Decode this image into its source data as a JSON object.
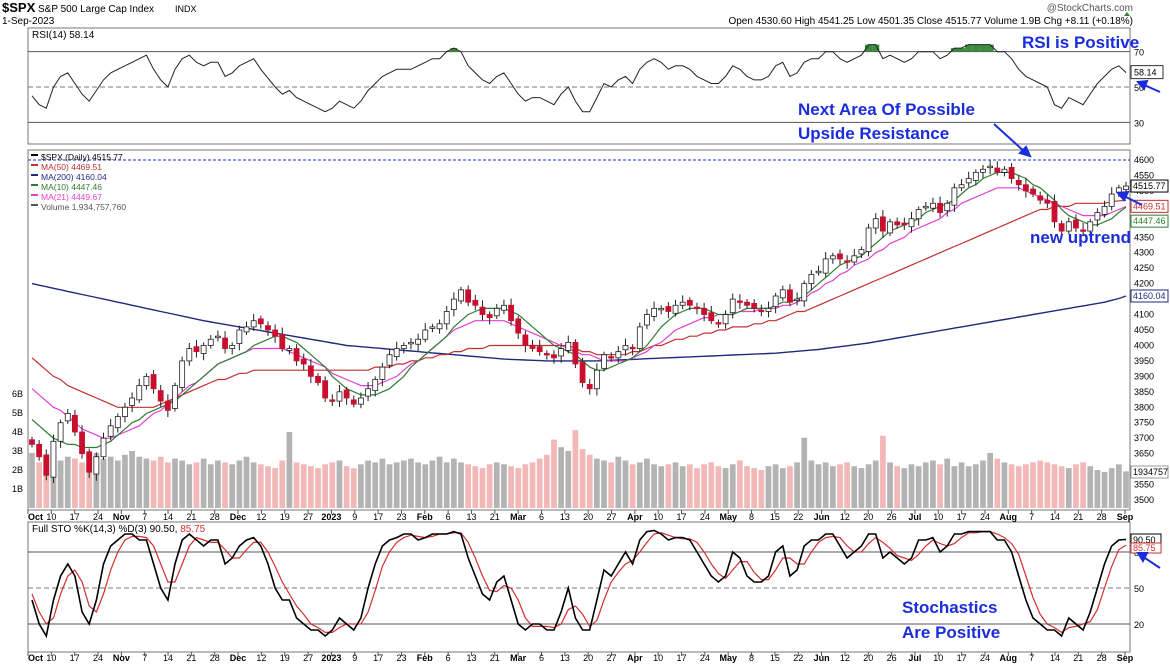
{
  "header": {
    "symbol": "$SPX",
    "name": "S&P 500 Large Cap Index",
    "exchange": "INDX",
    "date": "1-Sep-2023",
    "copyright": "@StockCharts.com",
    "ohlc_text": "Open 4530.60  High 4541.25  Low 4501.35  Close 4515.77  Volume 1.9B  Chg +8.11 (+0.18%)"
  },
  "colors": {
    "up": "#000000",
    "down": "#c8102e",
    "ma50": "#c0302f",
    "ma200": "#1d2b7a",
    "ma10": "#2e7d32",
    "ma21": "#e040d0",
    "annotation": "#1a2ddb",
    "vol_up": "#b3b3b3",
    "vol_down": "#f2b8b8",
    "sto_k": "#000000",
    "sto_d": "#d32f2f"
  },
  "rsi": {
    "label": "RSI(14) 58.14",
    "ticks": [
      "70",
      "50",
      "30"
    ],
    "current": "58.14",
    "annotation": "RSI is Positive"
  },
  "price": {
    "legend": [
      {
        "text": "$SPX (Daily) 4515.77",
        "color": "#000000"
      },
      {
        "text": "MA(50) 4469.51",
        "color": "#c0302f"
      },
      {
        "text": "MA(200) 4160.04",
        "color": "#1d2b7a"
      },
      {
        "text": "MA(10) 4447.46",
        "color": "#2e7d32"
      },
      {
        "text": "MA(21) 4449.67",
        "color": "#e040d0"
      },
      {
        "text": "Volume 1,934,757,760",
        "color": "#555555"
      }
    ],
    "ticks": [
      "4600",
      "4550",
      "4500",
      "4450",
      "4400",
      "4350",
      "4300",
      "4250",
      "4200",
      "4150",
      "4100",
      "4050",
      "4000",
      "3950",
      "3900",
      "3850",
      "3800",
      "3750",
      "3700",
      "3650",
      "3600",
      "3550",
      "3500"
    ],
    "vol_ticks": [
      "6B",
      "5B",
      "4B",
      "3B",
      "2B",
      "1B"
    ],
    "right_labels": [
      "4515.77",
      "4469.51",
      "4447.46",
      "4160.04",
      "1934757"
    ],
    "annotations": {
      "resistance_line1": "Next Area Of Possible",
      "resistance_line2": "Upside Resistance",
      "uptrend": "new uptrend"
    }
  },
  "sto": {
    "label": "Full STO %K(14,3) %D(3) 90.50, 85.75",
    "label_prefix": "Full STO %K(14,3) %D(3) 90.50,",
    "label_suffix": "85.75",
    "ticks": [
      "80",
      "50",
      "20"
    ],
    "right_labels": [
      "90.50",
      "85.75"
    ],
    "annotation_line1": "Stochastics",
    "annotation_line2": "Are Positive"
  },
  "x_axis": {
    "labels": [
      "Oct",
      "10",
      "17",
      "24",
      "Nov",
      "7",
      "14",
      "21",
      "28",
      "Dec",
      "12",
      "19",
      "27",
      "2023",
      "9",
      "17",
      "23",
      "Feb",
      "6",
      "13",
      "21",
      "Mar",
      "6",
      "13",
      "20",
      "27",
      "Apr",
      "10",
      "17",
      "24",
      "May",
      "8",
      "15",
      "22",
      "Jun",
      "12",
      "20",
      "26",
      "Jul",
      "10",
      "17",
      "24",
      "Aug",
      "7",
      "14",
      "21",
      "28",
      "Sep"
    ],
    "bold": [
      "Oct",
      "Nov",
      "Dec",
      "2023",
      "Feb",
      "Mar",
      "Apr",
      "May",
      "Jun",
      "Jul",
      "Aug",
      "Sep"
    ]
  },
  "chart_data": {
    "type": "candlestick",
    "title": "$SPX S&P 500 Large Cap Index INDX",
    "date": "1-Sep-2023",
    "ylim": [
      3480,
      4620
    ],
    "close": [
      3680,
      3640,
      3580,
      3690,
      3750,
      3780,
      3720,
      3650,
      3590,
      3640,
      3700,
      3740,
      3770,
      3800,
      3830,
      3870,
      3900,
      3860,
      3820,
      3790,
      3870,
      3950,
      3990,
      3980,
      4000,
      4020,
      4030,
      3990,
      4000,
      4050,
      4060,
      4080,
      4070,
      4050,
      4030,
      3990,
      3990,
      3950,
      3940,
      3900,
      3880,
      3830,
      3820,
      3850,
      3830,
      3810,
      3830,
      3860,
      3890,
      3930,
      3970,
      3990,
      4000,
      4010,
      4020,
      4050,
      4060,
      4070,
      4110,
      4150,
      4180,
      4140,
      4130,
      4100,
      4090,
      4120,
      4130,
      4080,
      4040,
      4000,
      3990,
      3980,
      3970,
      3960,
      3990,
      4010,
      3940,
      3880,
      3860,
      3920,
      3970,
      3960,
      3980,
      4000,
      3990,
      4060,
      4100,
      4120,
      4120,
      4110,
      4130,
      4140,
      4130,
      4120,
      4100,
      4080,
      4070,
      4100,
      4150,
      4140,
      4130,
      4120,
      4110,
      4120,
      4160,
      4180,
      4140,
      4150,
      4200,
      4230,
      4240,
      4280,
      4290,
      4280,
      4270,
      4290,
      4310,
      4380,
      4410,
      4370,
      4400,
      4390,
      4390,
      4410,
      4440,
      4450,
      4460,
      4430,
      4460,
      4510,
      4520,
      4540,
      4560,
      4570,
      4580,
      4560,
      4570,
      4540,
      4520,
      4500,
      4490,
      4470,
      4460,
      4400,
      4370,
      4400,
      4380,
      4370,
      4400,
      4430,
      4450,
      4490,
      4510,
      4515.77
    ],
    "ma10": [
      3760,
      3740,
      3720,
      3700,
      3690,
      3680,
      3680,
      3670,
      3670,
      3670,
      3680,
      3690,
      3710,
      3730,
      3750,
      3760,
      3780,
      3790,
      3800,
      3810,
      3820,
      3840,
      3860,
      3880,
      3900,
      3920,
      3940,
      3950,
      3960,
      3970,
      3980,
      4000,
      4010,
      4020,
      4030,
      4030,
      4020,
      4010,
      3990,
      3970,
      3950,
      3930,
      3900,
      3880,
      3860,
      3850,
      3840,
      3840,
      3840,
      3850,
      3860,
      3880,
      3900,
      3930,
      3950,
      3970,
      3990,
      4010,
      4030,
      4060,
      4080,
      4100,
      4110,
      4120,
      4120,
      4120,
      4120,
      4110,
      4100,
      4080,
      4060,
      4040,
      4020,
      4000,
      3990,
      3980,
      3970,
      3950,
      3930,
      3920,
      3920,
      3930,
      3940,
      3950,
      3960,
      3980,
      4000,
      4030,
      4060,
      4080,
      4100,
      4110,
      4120,
      4120,
      4120,
      4110,
      4100,
      4100,
      4100,
      4110,
      4120,
      4120,
      4120,
      4120,
      4130,
      4140,
      4140,
      4150,
      4160,
      4180,
      4200,
      4220,
      4240,
      4260,
      4270,
      4280,
      4290,
      4310,
      4330,
      4350,
      4370,
      4380,
      4390,
      4400,
      4410,
      4430,
      4440,
      4450,
      4460,
      4470,
      4490,
      4510,
      4520,
      4540,
      4550,
      4560,
      4560,
      4560,
      4550,
      4540,
      4520,
      4510,
      4490,
      4470,
      4440,
      4420,
      4410,
      4400,
      4390,
      4390,
      4400,
      4410,
      4430,
      4447.46
    ],
    "ma21": [
      3860,
      3840,
      3820,
      3800,
      3790,
      3770,
      3750,
      3730,
      3720,
      3710,
      3700,
      3700,
      3710,
      3720,
      3730,
      3740,
      3760,
      3780,
      3790,
      3810,
      3830,
      3850,
      3870,
      3880,
      3900,
      3920,
      3940,
      3950,
      3960,
      3970,
      3980,
      3990,
      3990,
      3990,
      3990,
      3990,
      3980,
      3970,
      3960,
      3950,
      3940,
      3930,
      3910,
      3900,
      3890,
      3880,
      3870,
      3870,
      3870,
      3880,
      3890,
      3900,
      3920,
      3940,
      3950,
      3970,
      3990,
      4010,
      4030,
      4050,
      4060,
      4070,
      4080,
      4080,
      4080,
      4080,
      4080,
      4070,
      4060,
      4050,
      4040,
      4030,
      4020,
      4010,
      4000,
      3990,
      3980,
      3970,
      3970,
      3960,
      3950,
      3950,
      3950,
      3950,
      3960,
      3970,
      3980,
      4000,
      4010,
      4030,
      4050,
      4060,
      4070,
      4080,
      4090,
      4090,
      4100,
      4100,
      4100,
      4110,
      4110,
      4110,
      4120,
      4120,
      4120,
      4130,
      4130,
      4140,
      4150,
      4170,
      4180,
      4200,
      4210,
      4230,
      4240,
      4260,
      4270,
      4280,
      4300,
      4310,
      4330,
      4340,
      4350,
      4370,
      4380,
      4390,
      4400,
      4410,
      4430,
      4440,
      4460,
      4470,
      4480,
      4490,
      4500,
      4510,
      4510,
      4510,
      4510,
      4500,
      4490,
      4480,
      4470,
      4460,
      4450,
      4440,
      4430,
      4420,
      4420,
      4420,
      4420,
      4430,
      4440,
      4449.67
    ],
    "ma50": [
      3960,
      3940,
      3920,
      3900,
      3890,
      3870,
      3860,
      3850,
      3840,
      3830,
      3820,
      3810,
      3800,
      3800,
      3800,
      3800,
      3800,
      3800,
      3810,
      3820,
      3830,
      3840,
      3850,
      3860,
      3870,
      3880,
      3890,
      3890,
      3900,
      3910,
      3910,
      3920,
      3920,
      3920,
      3920,
      3920,
      3920,
      3920,
      3920,
      3920,
      3920,
      3920,
      3920,
      3920,
      3920,
      3920,
      3920,
      3920,
      3930,
      3930,
      3930,
      3940,
      3940,
      3950,
      3950,
      3960,
      3960,
      3970,
      3970,
      3980,
      3980,
      3990,
      3990,
      3990,
      4000,
      4000,
      4000,
      4000,
      4000,
      4000,
      4000,
      4000,
      4000,
      4000,
      4000,
      4000,
      3990,
      3980,
      3980,
      3970,
      3970,
      3970,
      3970,
      3970,
      3980,
      3980,
      3990,
      4000,
      4000,
      4010,
      4020,
      4020,
      4030,
      4030,
      4040,
      4040,
      4050,
      4050,
      4060,
      4060,
      4060,
      4070,
      4070,
      4080,
      4080,
      4090,
      4100,
      4110,
      4110,
      4120,
      4130,
      4140,
      4150,
      4160,
      4170,
      4180,
      4190,
      4200,
      4210,
      4220,
      4230,
      4240,
      4250,
      4260,
      4270,
      4280,
      4290,
      4300,
      4310,
      4320,
      4330,
      4340,
      4350,
      4360,
      4370,
      4380,
      4390,
      4400,
      4410,
      4420,
      4430,
      4440,
      4440,
      4450,
      4450,
      4450,
      4460,
      4460,
      4460,
      4460,
      4460,
      4465,
      4468,
      4469.51
    ],
    "ma200": [
      4200,
      4195,
      4190,
      4185,
      4180,
      4175,
      4170,
      4165,
      4160,
      4155,
      4150,
      4145,
      4140,
      4135,
      4130,
      4125,
      4120,
      4115,
      4110,
      4105,
      4100,
      4095,
      4090,
      4085,
      4080,
      4076,
      4072,
      4068,
      4064,
      4060,
      4056,
      4052,
      4048,
      4044,
      4040,
      4036,
      4032,
      4028,
      4024,
      4020,
      4016,
      4012,
      4008,
      4004,
      4000,
      3998,
      3996,
      3994,
      3992,
      3990,
      3988,
      3986,
      3984,
      3982,
      3980,
      3978,
      3976,
      3974,
      3972,
      3970,
      3968,
      3966,
      3964,
      3962,
      3960,
      3958,
      3956,
      3955,
      3954,
      3953,
      3952,
      3951,
      3950,
      3950,
      3950,
      3950,
      3950,
      3950,
      3950,
      3950,
      3951,
      3952,
      3953,
      3954,
      3955,
      3956,
      3957,
      3958,
      3959,
      3960,
      3961,
      3962,
      3963,
      3964,
      3965,
      3966,
      3967,
      3968,
      3969,
      3970,
      3971,
      3972,
      3973,
      3974,
      3975,
      3977,
      3979,
      3981,
      3983,
      3985,
      3987,
      3990,
      3993,
      3996,
      3999,
      4002,
      4005,
      4008,
      4012,
      4016,
      4020,
      4024,
      4028,
      4032,
      4036,
      4040,
      4044,
      4048,
      4052,
      4056,
      4060,
      4064,
      4068,
      4072,
      4076,
      4080,
      4084,
      4088,
      4092,
      4096,
      4100,
      4104,
      4108,
      4112,
      4116,
      4120,
      4124,
      4128,
      4132,
      4136,
      4140,
      4146,
      4152,
      4160.04
    ],
    "volume_billions": [
      2.9,
      2.4,
      2.6,
      2.8,
      2.5,
      2.7,
      2.6,
      2.4,
      2.8,
      2.9,
      2.6,
      2.7,
      2.5,
      2.8,
      3.0,
      2.7,
      2.6,
      2.5,
      2.7,
      2.4,
      2.6,
      2.5,
      2.3,
      2.4,
      2.6,
      2.3,
      2.5,
      2.4,
      2.3,
      2.5,
      2.7,
      2.4,
      2.3,
      2.2,
      2.1,
      2.5,
      4.0,
      2.4,
      2.3,
      2.2,
      2.1,
      2.3,
      2.4,
      2.5,
      2.2,
      2.1,
      2.3,
      2.5,
      2.4,
      2.6,
      2.3,
      2.4,
      2.5,
      2.6,
      2.4,
      2.3,
      2.5,
      2.7,
      2.4,
      2.6,
      2.4,
      2.3,
      2.2,
      2.1,
      2.3,
      2.4,
      2.3,
      2.2,
      2.1,
      2.3,
      2.4,
      2.6,
      2.8,
      3.6,
      3.2,
      3.0,
      4.1,
      3.1,
      2.8,
      2.6,
      2.5,
      2.4,
      2.7,
      2.5,
      2.3,
      2.4,
      2.6,
      2.3,
      2.2,
      2.3,
      2.4,
      2.2,
      2.3,
      2.1,
      2.3,
      2.4,
      2.2,
      2.1,
      2.3,
      2.5,
      2.2,
      2.1,
      2.0,
      2.2,
      2.3,
      2.1,
      2.2,
      2.4,
      3.7,
      2.5,
      2.3,
      2.4,
      2.2,
      2.3,
      2.4,
      2.2,
      2.1,
      2.3,
      2.5,
      3.8,
      2.4,
      2.2,
      2.1,
      2.3,
      2.2,
      2.4,
      2.5,
      2.3,
      2.6,
      2.2,
      2.4,
      2.2,
      2.3,
      2.5,
      2.9,
      2.6,
      2.4,
      2.3,
      2.2,
      2.3,
      2.4,
      2.5,
      2.4,
      2.3,
      2.2,
      2.1,
      2.3,
      2.4,
      2.2,
      2.0,
      1.9,
      2.1,
      2.3,
      1.93
    ],
    "rsi": [
      45,
      40,
      38,
      50,
      56,
      58,
      52,
      46,
      42,
      48,
      54,
      58,
      60,
      62,
      64,
      66,
      68,
      60,
      54,
      50,
      60,
      66,
      68,
      64,
      62,
      64,
      64,
      56,
      58,
      62,
      64,
      66,
      60,
      55,
      50,
      46,
      48,
      44,
      42,
      40,
      38,
      36,
      38,
      42,
      40,
      38,
      42,
      48,
      52,
      56,
      58,
      60,
      60,
      60,
      62,
      64,
      66,
      66,
      70,
      72,
      70,
      62,
      58,
      54,
      52,
      56,
      58,
      52,
      46,
      42,
      44,
      44,
      42,
      40,
      46,
      50,
      42,
      36,
      36,
      44,
      52,
      50,
      54,
      56,
      52,
      60,
      64,
      66,
      64,
      60,
      62,
      62,
      60,
      56,
      54,
      52,
      52,
      56,
      62,
      60,
      56,
      54,
      54,
      56,
      62,
      64,
      56,
      58,
      64,
      66,
      66,
      70,
      70,
      66,
      64,
      66,
      68,
      74,
      74,
      66,
      68,
      66,
      64,
      66,
      70,
      70,
      70,
      66,
      68,
      72,
      72,
      74,
      74,
      74,
      74,
      70,
      70,
      66,
      60,
      56,
      54,
      52,
      50,
      40,
      38,
      44,
      42,
      40,
      46,
      52,
      56,
      60,
      62,
      58.14
    ],
    "sto_k": [
      40,
      20,
      10,
      40,
      60,
      70,
      60,
      30,
      20,
      40,
      70,
      85,
      90,
      95,
      95,
      90,
      90,
      70,
      50,
      40,
      70,
      90,
      95,
      90,
      85,
      90,
      90,
      70,
      75,
      85,
      90,
      92,
      85,
      70,
      50,
      40,
      40,
      25,
      20,
      15,
      15,
      10,
      15,
      25,
      20,
      15,
      25,
      50,
      70,
      85,
      90,
      92,
      95,
      95,
      90,
      92,
      95,
      95,
      95,
      97,
      95,
      75,
      60,
      45,
      40,
      55,
      60,
      40,
      20,
      15,
      20,
      20,
      15,
      15,
      30,
      50,
      25,
      15,
      15,
      40,
      65,
      60,
      70,
      80,
      70,
      90,
      97,
      98,
      95,
      90,
      92,
      92,
      90,
      80,
      70,
      60,
      55,
      60,
      80,
      75,
      60,
      55,
      55,
      60,
      80,
      85,
      60,
      65,
      85,
      90,
      90,
      95,
      95,
      85,
      75,
      80,
      85,
      95,
      95,
      75,
      80,
      75,
      70,
      75,
      90,
      90,
      92,
      80,
      85,
      95,
      95,
      97,
      97,
      97,
      97,
      90,
      90,
      80,
      60,
      40,
      25,
      20,
      15,
      15,
      10,
      25,
      20,
      15,
      30,
      50,
      70,
      85,
      90,
      90.5
    ],
    "sto_d": [
      45,
      30,
      20,
      25,
      45,
      60,
      65,
      55,
      35,
      30,
      45,
      65,
      80,
      90,
      93,
      93,
      92,
      85,
      70,
      55,
      55,
      70,
      85,
      92,
      90,
      88,
      88,
      82,
      75,
      75,
      82,
      88,
      88,
      80,
      68,
      55,
      45,
      35,
      28,
      20,
      17,
      13,
      13,
      17,
      20,
      20,
      20,
      30,
      48,
      68,
      80,
      88,
      92,
      94,
      93,
      92,
      93,
      95,
      95,
      96,
      96,
      88,
      75,
      60,
      48,
      47,
      52,
      50,
      40,
      25,
      18,
      18,
      18,
      17,
      20,
      32,
      35,
      28,
      18,
      23,
      40,
      55,
      63,
      70,
      73,
      80,
      88,
      95,
      96,
      94,
      92,
      91,
      91,
      88,
      80,
      70,
      62,
      58,
      65,
      72,
      72,
      63,
      57,
      57,
      65,
      75,
      75,
      70,
      70,
      80,
      88,
      92,
      93,
      92,
      85,
      80,
      80,
      87,
      92,
      88,
      83,
      77,
      75,
      73,
      78,
      85,
      90,
      87,
      85,
      87,
      92,
      96,
      96,
      97,
      97,
      95,
      92,
      87,
      78,
      60,
      42,
      28,
      20,
      17,
      13,
      17,
      18,
      20,
      22,
      32,
      50,
      68,
      82,
      85.75
    ]
  }
}
